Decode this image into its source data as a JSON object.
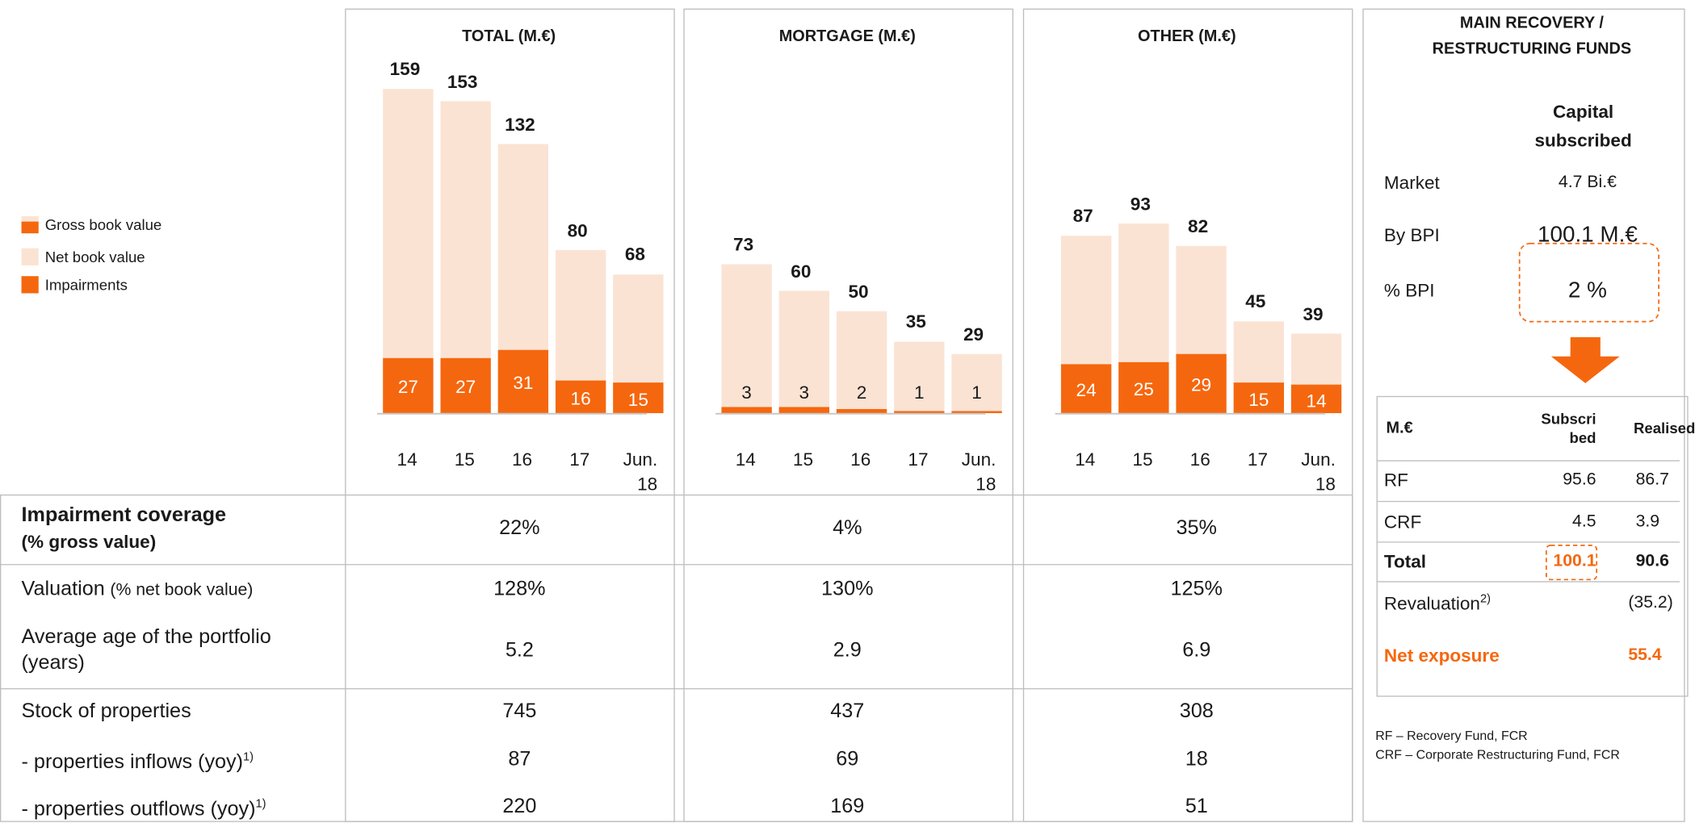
{
  "legend": [
    {
      "name": "Gross book value"
    },
    {
      "name": "Net book value",
      "color": "#fbe3d4"
    },
    {
      "name": "Impairments",
      "color": "#f5670e"
    }
  ],
  "chart_data": [
    {
      "type": "bar",
      "title": "TOTAL (M.€)",
      "categories": [
        "14",
        "15",
        "16",
        "17",
        "Jun. 18"
      ],
      "ylim": [
        0,
        200
      ],
      "series": [
        {
          "color": "#fbe3d4",
          "values": [
            159,
            153,
            132,
            80,
            68
          ]
        },
        {
          "color": "#f5670e",
          "values": [
            27,
            27,
            31,
            16,
            15
          ]
        }
      ]
    },
    {
      "type": "bar",
      "title": "MORTGAGE (M.€)",
      "categories": [
        "14",
        "15",
        "16",
        "17",
        "Jun. 18"
      ],
      "ylim": [
        0,
        200
      ],
      "series": [
        {
          "color": "#fbe3d4",
          "values": [
            73,
            60,
            50,
            35,
            29
          ]
        },
        {
          "color": "#f5670e",
          "values": [
            3,
            3,
            2,
            1,
            1
          ]
        }
      ]
    },
    {
      "type": "bar",
      "title": "OTHER (M.€)",
      "categories": [
        "14",
        "15",
        "16",
        "17",
        "Jun. 18"
      ],
      "ylim": [
        0,
        200
      ],
      "series": [
        {
          "color": "#fbe3d4",
          "values": [
            87,
            93,
            82,
            45,
            39
          ]
        },
        {
          "color": "#f5670e",
          "values": [
            24,
            25,
            29,
            15,
            14
          ]
        }
      ]
    }
  ],
  "table": {
    "rows": [
      {
        "label": "Impairment coverage",
        "note": "(% gross value)",
        "values": [
          "22%",
          "4%",
          "35%"
        ]
      },
      {
        "label": "Valuation",
        "note": "(% net book value)",
        "values": [
          "128%",
          "130%",
          "125%"
        ]
      },
      {
        "label": "Average age of the portfolio (years)",
        "values": [
          5.2,
          2.9,
          6.9
        ]
      },
      {
        "label": "Stock of properties",
        "values": [
          745,
          437,
          308
        ]
      },
      {
        "label": "- properties inflows (yoy)",
        "sup": "1)",
        "values": [
          87,
          69,
          18
        ]
      },
      {
        "label": "- properties outflows (yoy)",
        "sup": "1)",
        "values": [
          220,
          169,
          51
        ]
      }
    ]
  },
  "funds": {
    "title": "MAIN RECOVERY / RESTRUCTURING FUNDS",
    "capital_header": "Capital subscribed",
    "capital_rows": [
      {
        "label": "Market",
        "value": "4.7 Bi.€"
      },
      {
        "label": "By BPI",
        "value": "100.1 M.€"
      },
      {
        "label": "% BPI",
        "value": "2 %"
      }
    ],
    "table": {
      "header": [
        "M.€",
        "Subscribed",
        "Realised"
      ],
      "rows": [
        {
          "label": "RF",
          "values": [
            "95.6",
            "86.7"
          ]
        },
        {
          "label": "CRF",
          "values": [
            "4.5",
            "3.9"
          ]
        },
        {
          "label": "Total",
          "values": [
            "100.1",
            "90.6"
          ]
        },
        {
          "label": "Revaluation",
          "sup": "2)",
          "values": [
            "(35.2)"
          ]
        },
        {
          "label": "Net exposure",
          "values": [
            "55.4"
          ]
        }
      ]
    },
    "footnotes": [
      "RF – Recovery Fund, FCR",
      "CRF – Corporate Restructuring Fund, FCR"
    ]
  }
}
